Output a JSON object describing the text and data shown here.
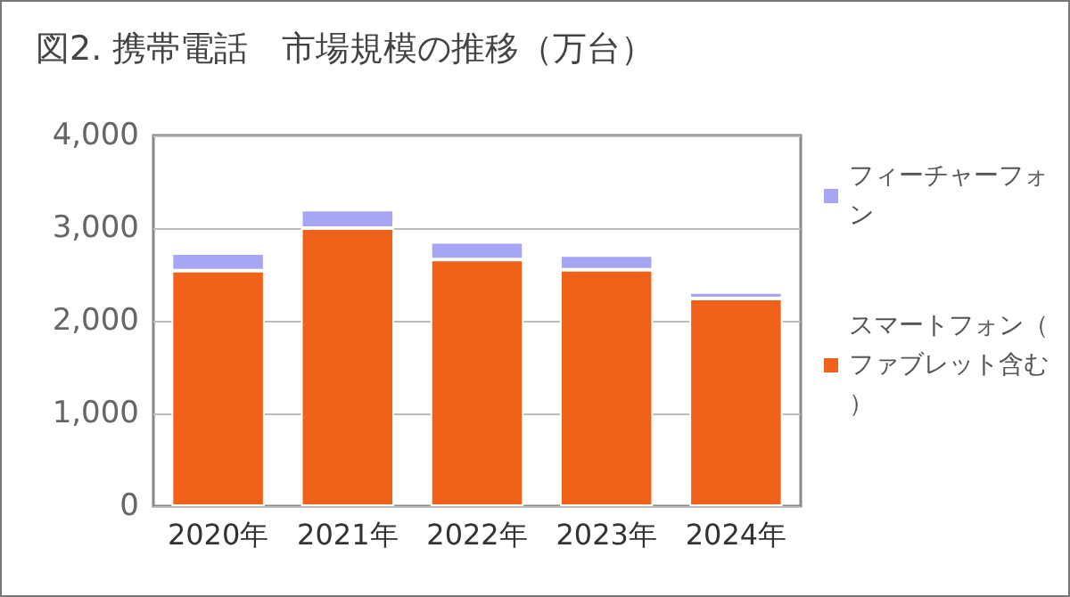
{
  "chart_data": {
    "type": "bar",
    "title": "図2. 携帯電話　市場規模の推移（万台）",
    "categories": [
      "2020年",
      "2021年",
      "2022年",
      "2023年",
      "2024年"
    ],
    "stacked": true,
    "series": [
      {
        "name": "スマートフォン（ファブレット含む）",
        "color": "#f0621a",
        "values": [
          2540,
          3000,
          2660,
          2550,
          2240
        ]
      },
      {
        "name": "フィーチャーフォン",
        "color": "#a6a6f5",
        "values": [
          190,
          200,
          190,
          160,
          70
        ]
      }
    ],
    "ylim": [
      0,
      4000
    ],
    "yticks": [
      0,
      {
        "value": 1000,
        "label": "1,000"
      },
      {
        "value": 2000,
        "label": "2,000"
      },
      {
        "value": 3000,
        "label": "3,000"
      },
      {
        "value": 4000,
        "label": "4,000"
      }
    ],
    "grid": "y",
    "legend": "right"
  }
}
